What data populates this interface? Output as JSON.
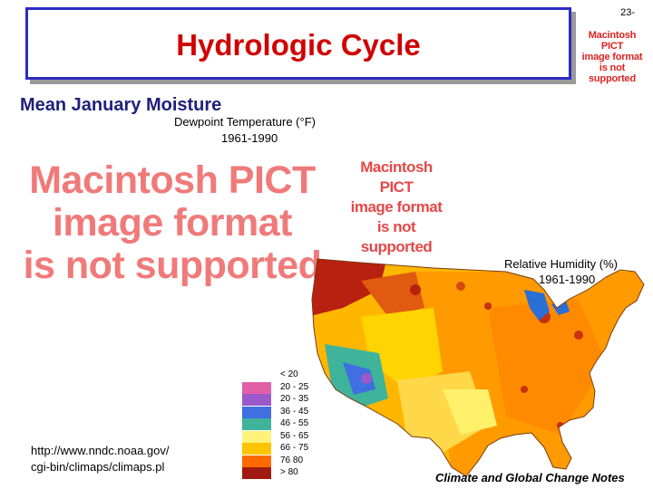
{
  "slide_number": "23-",
  "title": "Hydrologic Cycle",
  "subtitle": "Mean January  Moisture",
  "pict_placeholder": {
    "line1": "Macintosh PICT",
    "line2": "image format",
    "line3": "is not supported"
  },
  "dewpoint_panel": {
    "title": "Dewpoint Temperature (°F)",
    "years": "1961-1990"
  },
  "humidity_panel": {
    "title": "Relative Humidity (%)",
    "years": "1961-1990"
  },
  "legend": {
    "items": [
      {
        "label": "< 20",
        "color": "#ffffff"
      },
      {
        "label": "20 - 25",
        "color": "#e05fa8"
      },
      {
        "label": "20 - 35",
        "color": "#9b59c9"
      },
      {
        "label": "36 - 45",
        "color": "#3f6fe0"
      },
      {
        "label": "46 - 55",
        "color": "#3fb49a"
      },
      {
        "label": "56 - 65",
        "color": "#fff27a"
      },
      {
        "label": "66 - 75",
        "color": "#ffc400"
      },
      {
        "label": "76 80",
        "color": "#ff6a00"
      },
      {
        "label": "> 80",
        "color": "#a01a12"
      }
    ]
  },
  "source_url": {
    "line1": "http://www.nndc.noaa.gov/",
    "line2": "cgi-bin/climaps/climaps.pl"
  },
  "footer": "Climate and Global Change Notes"
}
